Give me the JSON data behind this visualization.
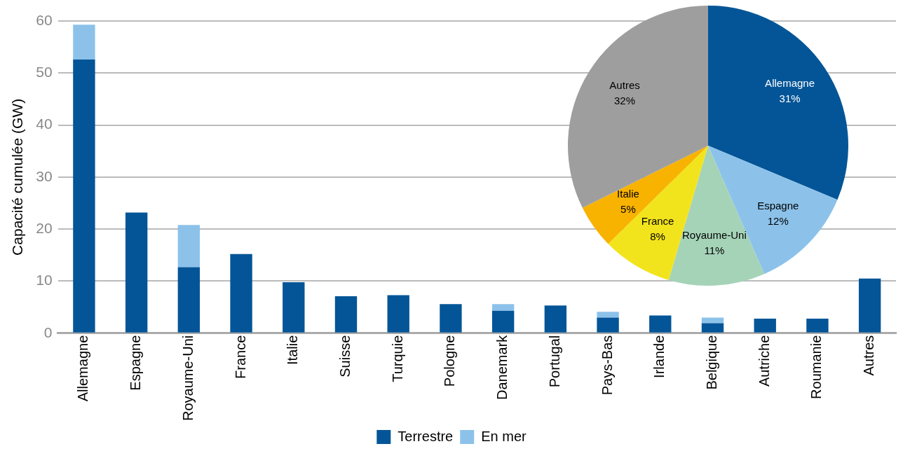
{
  "chart_data": [
    {
      "type": "bar",
      "ylabel": "Capacité cumulée (GW)",
      "categories": [
        "Allemagne",
        "Espagne",
        "Royaume-Uni",
        "France",
        "Italie",
        "Suisse",
        "Turquie",
        "Pologne",
        "Danemark",
        "Portugal",
        "Pays-Bas",
        "Irlande",
        "Belgique",
        "Autriche",
        "Roumanie",
        "Autres"
      ],
      "stacked": true,
      "ylim": [
        0,
        60
      ],
      "yticks": [
        0,
        10,
        20,
        30,
        40,
        50,
        60
      ],
      "grid": "y",
      "legend": "bottom",
      "series": [
        {
          "name": "Terrestre",
          "color": "#035597",
          "values": [
            52.6,
            23.2,
            12.7,
            15.2,
            9.8,
            7.1,
            7.3,
            5.6,
            4.3,
            5.3,
            3.0,
            3.4,
            1.9,
            2.8,
            2.8,
            10.5
          ]
        },
        {
          "name": "En mer",
          "color": "#8cc2ea",
          "values": [
            6.7,
            0,
            8.1,
            0,
            0,
            0,
            0,
            0,
            1.3,
            0,
            1.1,
            0,
            1.1,
            0,
            0,
            0
          ]
        }
      ]
    },
    {
      "type": "pie",
      "categories": [
        "Allemagne",
        "Espagne",
        "Royaume-Uni",
        "France",
        "Italie",
        "Autres"
      ],
      "values": [
        31,
        12,
        11,
        8,
        5,
        32
      ],
      "value_labels": [
        "31%",
        "12%",
        "11%",
        "8%",
        "5%",
        "32%"
      ],
      "colors": [
        "#035597",
        "#8cc2ea",
        "#a5d3b8",
        "#f2e41c",
        "#f8b200",
        "#9e9e9e"
      ],
      "legend": false
    }
  ]
}
